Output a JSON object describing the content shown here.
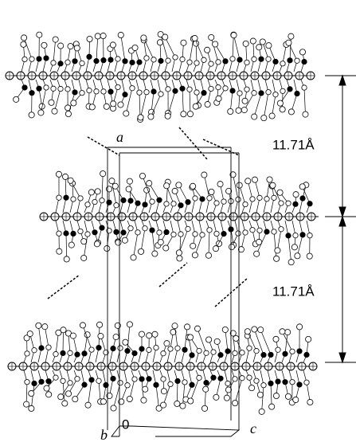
{
  "labels": {
    "axis_a": "a",
    "axis_b": "b",
    "origin": "0",
    "axis_c": "c"
  },
  "spacings": [
    {
      "label": "11.71Å"
    },
    {
      "label": "11.71Å"
    }
  ]
}
